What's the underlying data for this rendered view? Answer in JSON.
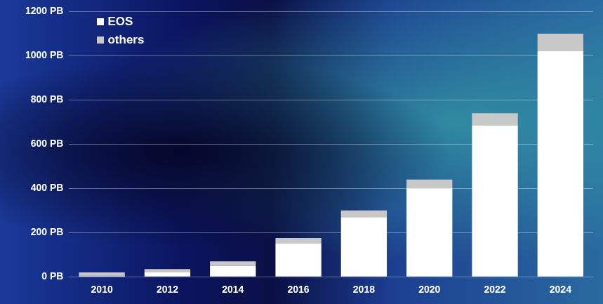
{
  "chart_data": {
    "type": "bar",
    "stacked": true,
    "grid": true,
    "legend": "upper left",
    "categories": [
      "2010",
      "2012",
      "2014",
      "2016",
      "2018",
      "2020",
      "2022",
      "2024"
    ],
    "series": [
      {
        "name": "EOS",
        "color": "#ffffff",
        "values": [
          5,
          20,
          50,
          150,
          270,
          400,
          685,
          1020
        ]
      },
      {
        "name": "others",
        "color": "#c8c8c8",
        "values": [
          15,
          15,
          20,
          25,
          30,
          40,
          55,
          80
        ]
      }
    ],
    "ylim": [
      0,
      1200
    ],
    "yticks": [
      {
        "value": 0,
        "label": "0 PB"
      },
      {
        "value": 200,
        "label": "200 PB"
      },
      {
        "value": 400,
        "label": "400 PB"
      },
      {
        "value": 600,
        "label": "600 PB"
      },
      {
        "value": 800,
        "label": "800 PB"
      },
      {
        "value": 1000,
        "label": "1000 PB"
      },
      {
        "value": 1200,
        "label": "1200 PB"
      }
    ]
  }
}
